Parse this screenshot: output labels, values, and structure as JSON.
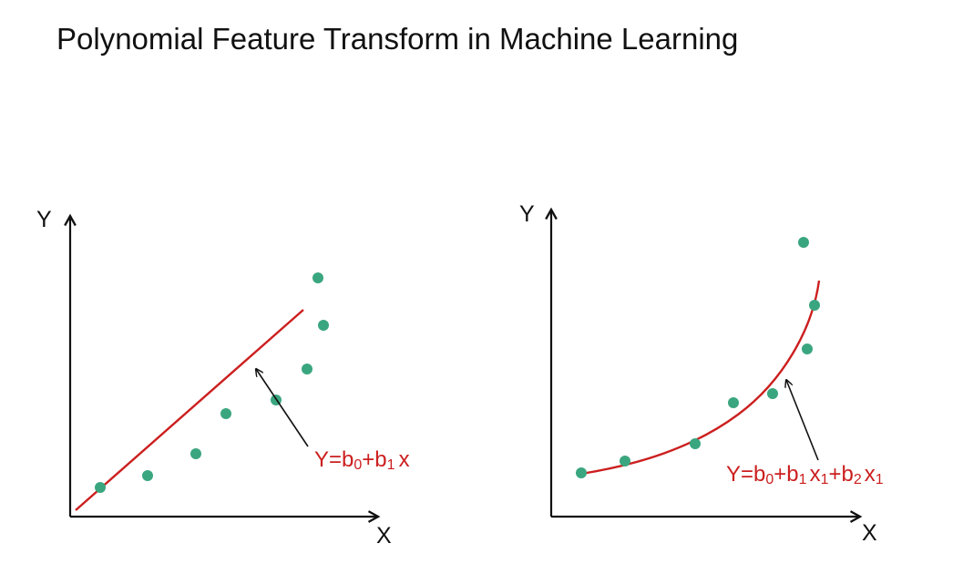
{
  "title": "Polynomial Feature Transform in Machine Learning",
  "colors": {
    "dot": "#3aa67f",
    "fit": "#cc1f1f",
    "axis": "#111111",
    "text": "#111111"
  },
  "left_panel": {
    "y_label": "Y",
    "x_label": "X",
    "equation": {
      "main_1": "Y=b",
      "sub_1": "0",
      "main_2": "+b",
      "sub_2": "1",
      "main_3": "x"
    }
  },
  "right_panel": {
    "y_label": "Y",
    "x_label": "X",
    "equation": {
      "main_1": "Y=b",
      "sub_1": "0",
      "main_2": "+b",
      "sub_2": "1",
      "main_3": "x",
      "sub_3": "1",
      "main_4": "+b",
      "sub_4": "2",
      "main_5": "x",
      "sub_5": "1"
    }
  }
}
